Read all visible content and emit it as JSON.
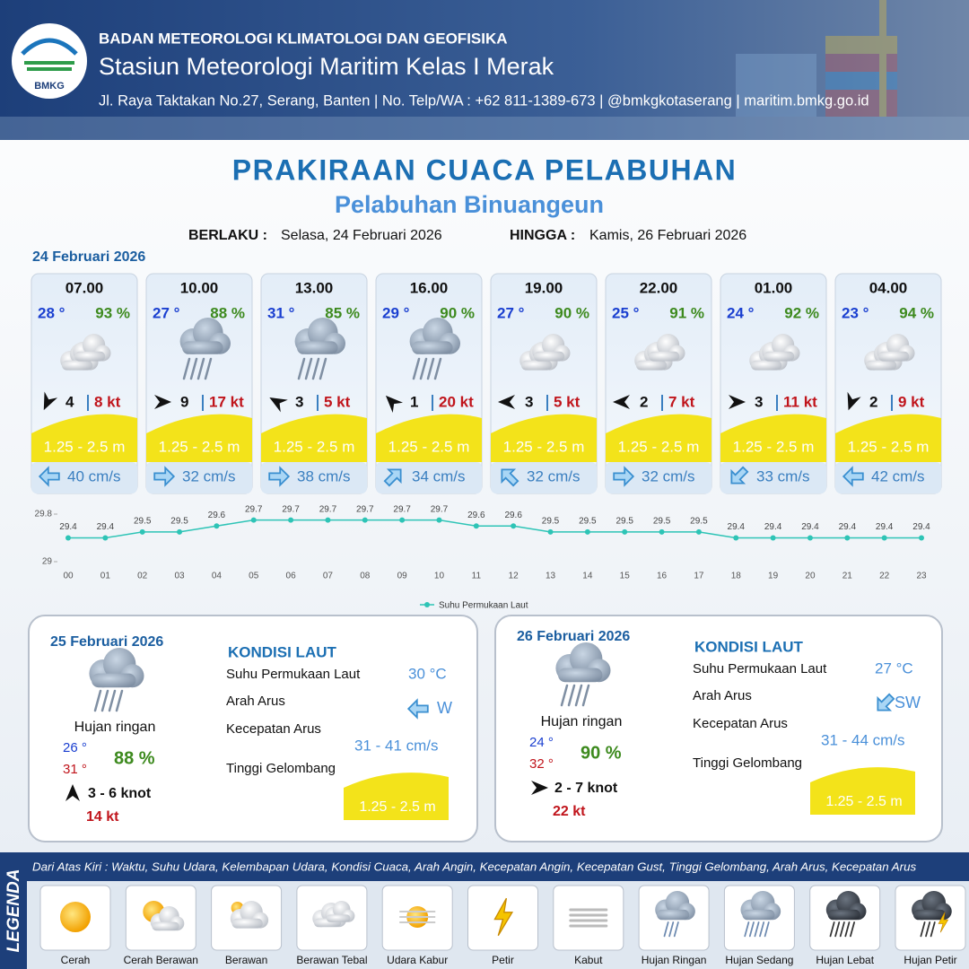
{
  "header": {
    "logo": "BMKG",
    "agency": "BADAN METEOROLOGI KLIMATOLOGI DAN GEOFISIKA",
    "station": "Stasiun Meteorologi Maritim Kelas I Merak",
    "address": "Jl. Raya Taktakan No.27, Serang, Banten | No. Telp/WA : +62 811-1389-673 | @bmkgkotaserang | maritim.bmkg.go.id"
  },
  "title": "PRAKIRAAN CUACA PELABUHAN",
  "subtitle": "Pelabuhan Binuangeun",
  "validity": {
    "from_label": "BERLAKU :",
    "from": "Selasa, 24 Februari 2026",
    "to_label": "HINGGA :",
    "to": "Kamis, 26 Februari 2026"
  },
  "today": {
    "date": "24 Februari 2026",
    "forecasts": [
      {
        "time": "07.00",
        "temp": "28 °",
        "humidity": "93 %",
        "wind_speed": 4,
        "gust": "8 kt",
        "wave": "1.25 - 2.5 m",
        "current": "40 cm/s"
      },
      {
        "time": "10.00",
        "temp": "27 °",
        "humidity": "88 %",
        "wind_speed": 9,
        "gust": "17 kt",
        "wave": "1.25 - 2.5 m",
        "current": "32 cm/s"
      },
      {
        "time": "13.00",
        "temp": "31 °",
        "humidity": "85 %",
        "wind_speed": 3,
        "gust": "5 kt",
        "wave": "1.25 - 2.5 m",
        "current": "38 cm/s"
      },
      {
        "time": "16.00",
        "temp": "29 °",
        "humidity": "90 %",
        "wind_speed": 1,
        "gust": "20 kt",
        "wave": "1.25 - 2.5 m",
        "current": "34 cm/s"
      },
      {
        "time": "19.00",
        "temp": "27 °",
        "humidity": "90 %",
        "wind_speed": 3,
        "gust": "5 kt",
        "wave": "1.25 - 2.5 m",
        "current": "32 cm/s"
      },
      {
        "time": "22.00",
        "temp": "25 °",
        "humidity": "91 %",
        "wind_speed": 2,
        "gust": "7 kt",
        "wave": "1.25 - 2.5 m",
        "current": "32 cm/s"
      },
      {
        "time": "01.00",
        "temp": "24 °",
        "humidity": "92 %",
        "wind_speed": 3,
        "gust": "11 kt",
        "wave": "1.25 - 2.5 m",
        "current": "33 cm/s"
      },
      {
        "time": "04.00",
        "temp": "23 °",
        "humidity": "94 %",
        "wind_speed": 2,
        "gust": "9 kt",
        "wave": "1.25 - 2.5 m",
        "current": "42 cm/s"
      }
    ]
  },
  "chart_data": {
    "type": "line",
    "categories": [
      "00",
      "01",
      "02",
      "03",
      "04",
      "05",
      "06",
      "07",
      "08",
      "09",
      "10",
      "11",
      "12",
      "13",
      "14",
      "15",
      "16",
      "17",
      "18",
      "19",
      "20",
      "21",
      "22",
      "23"
    ],
    "series": [
      {
        "name": "Suhu Permukaan Laut",
        "color": "#2ec4b6",
        "values": [
          29.4,
          29.4,
          29.5,
          29.5,
          29.6,
          29.7,
          29.7,
          29.7,
          29.7,
          29.7,
          29.7,
          29.6,
          29.6,
          29.5,
          29.5,
          29.5,
          29.5,
          29.5,
          29.4,
          29.4,
          29.4,
          29.4,
          29.4,
          29.4
        ]
      }
    ],
    "ylim": [
      29,
      29.8
    ],
    "yticks": [
      29,
      29.8
    ],
    "legend": "bottom",
    "data_labels": true
  },
  "days": [
    {
      "date": "25 Februari 2026",
      "condition": "Hujan ringan",
      "temp_min": "26 °",
      "temp_max": "31 °",
      "humidity": "88 %",
      "wind": "3 - 6 knot",
      "gust": "14 kt",
      "sea": {
        "heading": "KONDISI LAUT",
        "sst_label": "Suhu Permukaan Laut",
        "sst": "30 °C",
        "dir_label": "Arah Arus",
        "dir": "W",
        "speed_label": "Kecepatan Arus",
        "speed": "31 - 41 cm/s",
        "wave_label": "Tinggi Gelombang",
        "wave": "1.25 - 2.5 m"
      }
    },
    {
      "date": "26 Februari 2026",
      "condition": "Hujan ringan",
      "temp_min": "24 °",
      "temp_max": "32 °",
      "humidity": "90 %",
      "wind": "2 - 7 knot",
      "gust": "22 kt",
      "sea": {
        "heading": "KONDISI LAUT",
        "sst_label": "Suhu Permukaan Laut",
        "sst": "27 °C",
        "dir_label": "Arah Arus",
        "dir": "SW",
        "speed_label": "Kecepatan Arus",
        "speed": "31 - 44 cm/s",
        "wave_label": "Tinggi Gelombang",
        "wave": "1.25 - 2.5 m"
      }
    }
  ],
  "legend": {
    "title": "LEGENDA",
    "description": "Dari Atas Kiri : Waktu, Suhu Udara, Kelembapan Udara, Kondisi Cuaca, Arah Angin, Kecepatan Angin, Kecepatan Gust, Tinggi Gelombang, Arah Arus, Kecepatan Arus",
    "items": [
      "Cerah",
      "Cerah Berawan",
      "Berawan",
      "Berawan Tebal",
      "Udara Kabur",
      "Petir",
      "Kabut",
      "Hujan Ringan",
      "Hujan Sedang",
      "Hujan Lebat",
      "Hujan Petir"
    ]
  }
}
